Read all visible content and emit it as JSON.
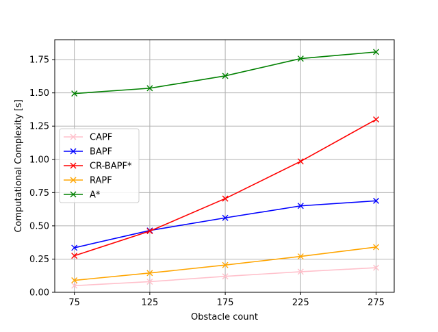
{
  "chart_data": {
    "type": "line",
    "xlabel": "Obstacle count",
    "ylabel": "Computational Complexity [s]",
    "x": [
      75,
      125,
      175,
      225,
      275
    ],
    "xticks": [
      "75",
      "125",
      "175",
      "225",
      "275"
    ],
    "xlim": [
      62,
      287
    ],
    "ylim": [
      0,
      1.9
    ],
    "yticks": [
      "0.00",
      "0.25",
      "0.50",
      "0.75",
      "1.00",
      "1.25",
      "1.50",
      "1.75"
    ],
    "grid": true,
    "legend_position": "center-left",
    "marker": "x",
    "series": [
      {
        "name": "CAPF",
        "color": "#ffc0cb",
        "values": [
          0.05,
          0.08,
          0.12,
          0.155,
          0.185
        ]
      },
      {
        "name": "BAPF",
        "color": "#0000ff",
        "values": [
          0.335,
          0.465,
          0.56,
          0.65,
          0.688
        ]
      },
      {
        "name": "CR-BAPF*",
        "color": "#ff0000",
        "values": [
          0.275,
          0.46,
          0.705,
          0.985,
          1.3
        ]
      },
      {
        "name": "RAPF",
        "color": "#ffa500",
        "values": [
          0.09,
          0.145,
          0.205,
          0.27,
          0.34
        ]
      },
      {
        "name": "A*",
        "color": "#008000",
        "values": [
          1.495,
          1.535,
          1.628,
          1.758,
          1.808
        ]
      }
    ]
  }
}
